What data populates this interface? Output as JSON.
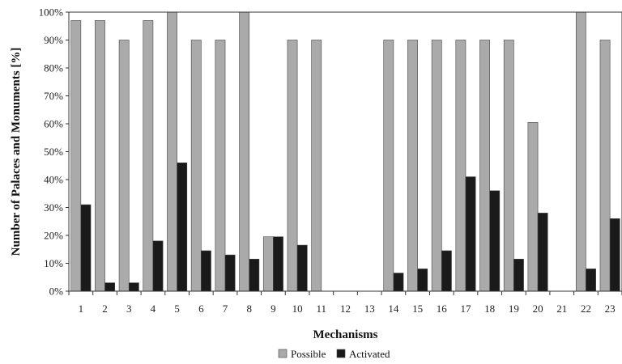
{
  "chart_data": {
    "type": "bar",
    "xlabel": "Mechanisms",
    "ylabel": "Number of Palaces and Monuments [%]",
    "ylim": [
      0,
      100
    ],
    "yticks": [
      "0%",
      "10%",
      "20%",
      "30%",
      "40%",
      "50%",
      "60%",
      "70%",
      "80%",
      "90%",
      "100%"
    ],
    "categories": [
      "1",
      "2",
      "3",
      "4",
      "5",
      "6",
      "7",
      "8",
      "9",
      "10",
      "11",
      "12",
      "13",
      "14",
      "15",
      "16",
      "17",
      "18",
      "19",
      "20",
      "21",
      "22",
      "23"
    ],
    "series": [
      {
        "name": "Possible",
        "color": "#aaaaaa",
        "values": [
          97,
          97,
          90,
          97,
          100,
          90,
          90,
          100,
          19.5,
          90,
          90,
          0,
          0,
          90,
          90,
          90,
          90,
          90,
          90,
          60.5,
          0,
          100,
          90
        ]
      },
      {
        "name": "Activated",
        "color": "#1a1a1a",
        "values": [
          31,
          3,
          3,
          18,
          46,
          14.5,
          13,
          11.5,
          19.5,
          16.5,
          0,
          0,
          0,
          6.5,
          8,
          14.5,
          41,
          36,
          11.5,
          28,
          0,
          8,
          26
        ]
      }
    ],
    "grid": false,
    "legend_position": "bottom-center"
  }
}
